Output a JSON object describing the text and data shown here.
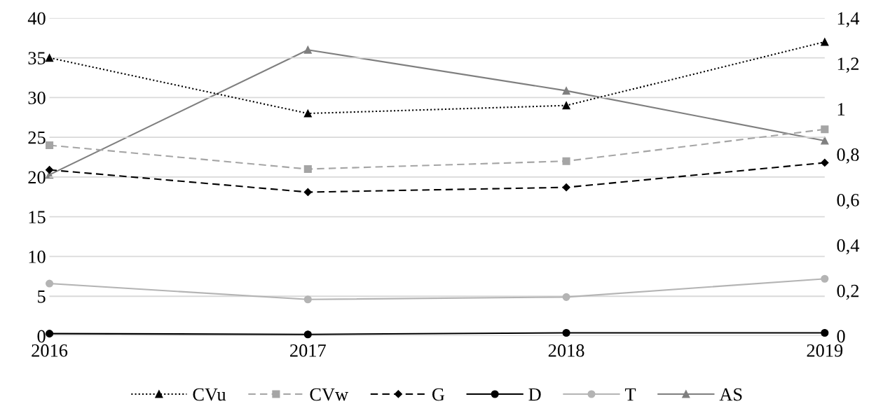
{
  "chart_data": {
    "type": "line",
    "x": [
      2016,
      2017,
      2018,
      2019
    ],
    "xlim": [
      2016,
      2019
    ],
    "xticks": [
      2016,
      2017,
      2018,
      2019
    ],
    "ylim": [
      0,
      40
    ],
    "yticks": [
      0,
      5,
      10,
      15,
      20,
      25,
      30,
      35,
      40
    ],
    "y2lim": [
      0,
      1.4
    ],
    "y2ticks": [
      0,
      {
        "value": 0.2,
        "label": "0,2"
      },
      {
        "value": 0.4,
        "label": "0,4"
      },
      {
        "value": 0.6,
        "label": "0,6"
      },
      {
        "value": 0.8,
        "label": "0,8"
      },
      1,
      {
        "value": 1.2,
        "label": "1,2"
      },
      {
        "value": 1.4,
        "label": "1,4"
      }
    ],
    "grid": "y",
    "legend": "bottom",
    "series": [
      {
        "name": "CVu",
        "color": "#000000",
        "marker": "triangle",
        "line_style": "dotted",
        "values": [
          35,
          28,
          29,
          37
        ]
      },
      {
        "name": "CVw",
        "color": "#a5a5a5",
        "marker": "square",
        "line_style": "dashed",
        "values": [
          24,
          21,
          22,
          26
        ]
      },
      {
        "name": "G",
        "color": "#000000",
        "marker": "diamond",
        "line_style": "dashed",
        "values": [
          20.9,
          18.1,
          18.7,
          21.8
        ]
      },
      {
        "name": "D",
        "color": "#000000",
        "marker": "circle",
        "line_style": "solid",
        "values": [
          0.3,
          0.2,
          0.4,
          0.4
        ]
      },
      {
        "name": "T",
        "color": "#b4b4b4",
        "marker": "circle",
        "line_style": "solid",
        "values": [
          6.6,
          4.6,
          4.9,
          7.2
        ]
      },
      {
        "name": "AS",
        "color": "#7f7f7f",
        "marker": "triangle",
        "line_style": "solid",
        "axis": "y2",
        "values": [
          0.71,
          1.26,
          1.08,
          0.86
        ]
      }
    ]
  }
}
